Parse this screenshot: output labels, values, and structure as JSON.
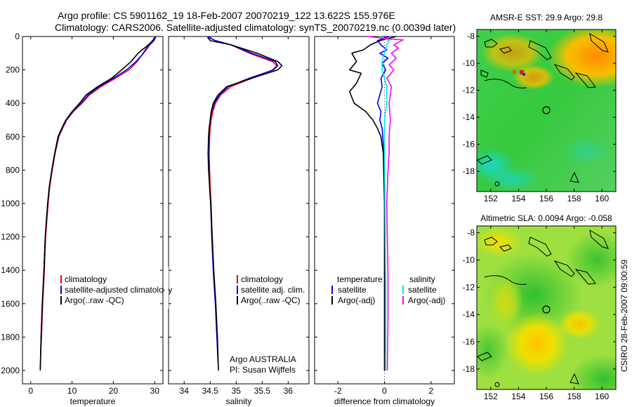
{
  "figure": {
    "title_line1": "Argo profile: CS 5901162_19 18-Feb-2007 20070219_122 13.622S 155.976E",
    "title_line2": "Climatology: CARS2006. Satellite-adjusted climatology: synTS_20070219.nc (0.0039d later)",
    "credit_vertical": "CSIRO 28-Feb-2007 09:00:59",
    "argo_note_1": "Argo AUSTRALIA",
    "argo_note_2": "PI: Susan Wijffels"
  },
  "colors": {
    "climatology": "#ff0000",
    "satellite": "#0000ff",
    "argo": "#000000",
    "satellite_salinity": "#00e5e5",
    "argo_salinity_adj": "#ff00ff"
  },
  "legends": {
    "temperature": [
      "climatology",
      "satellite-adjusted climatology",
      "Argo(..raw -QC)"
    ],
    "salinity": [
      "climatology",
      "satellite adj. clim.",
      "Argo(..raw -QC)"
    ],
    "difference": {
      "temperature_header": "temperature",
      "salinity_header": "salinity",
      "temperature_items": [
        "satellite",
        "Argo(-adj)"
      ],
      "salinity_items": [
        "satellite",
        "Argo(-adj)"
      ]
    }
  },
  "chart_data": [
    {
      "type": "line",
      "name": "temperature-profile",
      "xlabel": "temperature",
      "ylabel": "",
      "xlim": [
        -2,
        32
      ],
      "ylim": [
        2080,
        0
      ],
      "xticks": [
        0,
        10,
        20,
        30
      ],
      "yticks": [
        0,
        200,
        400,
        600,
        800,
        1000,
        1200,
        1400,
        1600,
        1800,
        2000
      ],
      "series": [
        {
          "name": "climatology",
          "color": "#ff0000",
          "points": [
            [
              30,
              0
            ],
            [
              29.6,
              25
            ],
            [
              28.5,
              50
            ],
            [
              27.2,
              100
            ],
            [
              25.8,
              150
            ],
            [
              23.8,
              200
            ],
            [
              20.5,
              250
            ],
            [
              17,
              300
            ],
            [
              14.2,
              350
            ],
            [
              12.4,
              400
            ],
            [
              10.3,
              450
            ],
            [
              8.7,
              500
            ],
            [
              7.7,
              550
            ],
            [
              6.8,
              600
            ],
            [
              5.9,
              700
            ],
            [
              5.2,
              800
            ],
            [
              4.6,
              900
            ],
            [
              4.2,
              1000
            ],
            [
              3.9,
              1100
            ],
            [
              3.6,
              1200
            ],
            [
              3.3,
              1400
            ],
            [
              2.9,
              1600
            ],
            [
              2.6,
              1800
            ],
            [
              2.4,
              1900
            ]
          ]
        },
        {
          "name": "satellite-adjusted climatology",
          "color": "#0000ff",
          "points": [
            [
              30.3,
              0
            ],
            [
              29.8,
              25
            ],
            [
              28.8,
              50
            ],
            [
              27.3,
              100
            ],
            [
              25.5,
              150
            ],
            [
              23.2,
              200
            ],
            [
              20,
              250
            ],
            [
              16.6,
              300
            ],
            [
              13.9,
              350
            ],
            [
              12.2,
              400
            ],
            [
              10.1,
              450
            ],
            [
              8.6,
              500
            ],
            [
              7.6,
              550
            ],
            [
              6.7,
              600
            ],
            [
              5.8,
              700
            ],
            [
              5.1,
              800
            ],
            [
              4.5,
              900
            ],
            [
              4.1,
              1000
            ],
            [
              3.8,
              1100
            ],
            [
              3.5,
              1200
            ],
            [
              3.2,
              1400
            ],
            [
              2.8,
              1600
            ],
            [
              2.5,
              1800
            ],
            [
              2.3,
              2000
            ]
          ]
        },
        {
          "name": "Argo(..raw -QC)",
          "color": "#000000",
          "points": [
            [
              30.2,
              5
            ],
            [
              29.5,
              25
            ],
            [
              28.5,
              50
            ],
            [
              26,
              100
            ],
            [
              24.3,
              150
            ],
            [
              22,
              200
            ],
            [
              19.6,
              250
            ],
            [
              16.2,
              300
            ],
            [
              13.4,
              350
            ],
            [
              11.8,
              400
            ],
            [
              10,
              450
            ],
            [
              8.5,
              500
            ],
            [
              7.5,
              550
            ],
            [
              6.6,
              600
            ],
            [
              5.8,
              700
            ],
            [
              5.1,
              800
            ],
            [
              4.5,
              900
            ],
            [
              4.1,
              1000
            ],
            [
              3.8,
              1100
            ],
            [
              3.5,
              1200
            ],
            [
              3.2,
              1400
            ],
            [
              2.8,
              1600
            ],
            [
              2.5,
              1800
            ],
            [
              2.3,
              2000
            ]
          ]
        }
      ]
    },
    {
      "type": "line",
      "name": "salinity-profile",
      "xlabel": "salinity",
      "ylabel": "",
      "xlim": [
        33.7,
        36.4
      ],
      "ylim": [
        2080,
        0
      ],
      "xticks": [
        34,
        34.5,
        35,
        35.5,
        36
      ],
      "yticks": [
        0,
        200,
        400,
        600,
        800,
        1000,
        1200,
        1400,
        1600,
        1800,
        2000
      ],
      "series": [
        {
          "name": "climatology",
          "color": "#ff0000",
          "points": [
            [
              34.45,
              0
            ],
            [
              34.6,
              25
            ],
            [
              34.9,
              50
            ],
            [
              35.25,
              100
            ],
            [
              35.7,
              150
            ],
            [
              35.78,
              175
            ],
            [
              35.7,
              200
            ],
            [
              35.3,
              250
            ],
            [
              34.9,
              300
            ],
            [
              34.7,
              350
            ],
            [
              34.6,
              400
            ],
            [
              34.55,
              450
            ],
            [
              34.52,
              500
            ],
            [
              34.5,
              550
            ],
            [
              34.49,
              600
            ],
            [
              34.48,
              700
            ],
            [
              34.49,
              800
            ],
            [
              34.5,
              900
            ],
            [
              34.52,
              1000
            ],
            [
              34.54,
              1200
            ],
            [
              34.56,
              1400
            ],
            [
              34.6,
              1600
            ],
            [
              34.63,
              1800
            ],
            [
              34.65,
              1900
            ]
          ]
        },
        {
          "name": "satellite adj. clim.",
          "color": "#0000ff",
          "points": [
            [
              34.45,
              0
            ],
            [
              34.6,
              25
            ],
            [
              34.9,
              50
            ],
            [
              35.3,
              100
            ],
            [
              35.75,
              150
            ],
            [
              35.8,
              175
            ],
            [
              35.72,
              200
            ],
            [
              35.25,
              250
            ],
            [
              34.85,
              300
            ],
            [
              34.68,
              350
            ],
            [
              34.58,
              400
            ],
            [
              34.53,
              450
            ],
            [
              34.5,
              500
            ],
            [
              34.49,
              550
            ],
            [
              34.48,
              600
            ],
            [
              34.47,
              700
            ],
            [
              34.48,
              800
            ],
            [
              34.49,
              900
            ],
            [
              34.51,
              1000
            ],
            [
              34.53,
              1200
            ],
            [
              34.56,
              1400
            ],
            [
              34.6,
              1600
            ],
            [
              34.63,
              1800
            ],
            [
              34.65,
              1950
            ]
          ]
        },
        {
          "name": "Argo(..raw -QC)",
          "color": "#000000",
          "points": [
            [
              34.45,
              5
            ],
            [
              34.5,
              25
            ],
            [
              34.9,
              50
            ],
            [
              35.4,
              100
            ],
            [
              35.8,
              150
            ],
            [
              35.88,
              175
            ],
            [
              35.8,
              200
            ],
            [
              35.3,
              250
            ],
            [
              34.82,
              300
            ],
            [
              34.65,
              350
            ],
            [
              34.56,
              400
            ],
            [
              34.52,
              450
            ],
            [
              34.5,
              500
            ],
            [
              34.48,
              550
            ],
            [
              34.47,
              600
            ],
            [
              34.46,
              700
            ],
            [
              34.47,
              800
            ],
            [
              34.49,
              900
            ],
            [
              34.51,
              1000
            ],
            [
              34.54,
              1200
            ],
            [
              34.57,
              1400
            ],
            [
              34.61,
              1600
            ],
            [
              34.64,
              1800
            ],
            [
              34.66,
              2000
            ]
          ]
        }
      ]
    },
    {
      "type": "line",
      "name": "difference-from-climatology",
      "xlabel": "difference from climatology",
      "ylabel": "",
      "xlim": [
        -3,
        3
      ],
      "ylim": [
        2080,
        0
      ],
      "xticks": [
        -2,
        0,
        2
      ],
      "yticks": [
        0,
        200,
        400,
        600,
        800,
        1000,
        1200,
        1400,
        1600,
        1800,
        2000
      ],
      "series": [
        {
          "name": "temperature satellite",
          "color": "#0000ff",
          "points": [
            [
              0.2,
              0
            ],
            [
              -0.3,
              25
            ],
            [
              -0.15,
              50
            ],
            [
              0.1,
              80
            ],
            [
              -0.2,
              100
            ],
            [
              0.15,
              130
            ],
            [
              -0.1,
              160
            ],
            [
              0.05,
              200
            ],
            [
              -0.15,
              250
            ],
            [
              -0.1,
              300
            ],
            [
              -0.2,
              350
            ],
            [
              -0.3,
              400
            ],
            [
              -0.15,
              450
            ],
            [
              -0.2,
              500
            ],
            [
              -0.1,
              550
            ],
            [
              -0.05,
              650
            ],
            [
              0,
              800
            ],
            [
              0.02,
              1000
            ],
            [
              0.03,
              1400
            ],
            [
              0.03,
              1900
            ]
          ]
        },
        {
          "name": "temperature Argo(-adj)",
          "color": "#000000",
          "points": [
            [
              0.5,
              0
            ],
            [
              -0.2,
              25
            ],
            [
              -0.6,
              50
            ],
            [
              -0.9,
              80
            ],
            [
              -1.4,
              100
            ],
            [
              -1.2,
              150
            ],
            [
              -1.5,
              200
            ],
            [
              -1.0,
              220
            ],
            [
              -1.2,
              280
            ],
            [
              -1.5,
              330
            ],
            [
              -1.3,
              400
            ],
            [
              -0.8,
              450
            ],
            [
              -0.5,
              500
            ],
            [
              -0.3,
              550
            ],
            [
              -0.15,
              600
            ],
            [
              -0.05,
              700
            ],
            [
              0,
              1000
            ],
            [
              0,
              1400
            ],
            [
              0,
              2000
            ]
          ]
        },
        {
          "name": "salinity satellite",
          "color": "#00e5e5",
          "points": [
            [
              -0.2,
              0
            ],
            [
              0.2,
              25
            ],
            [
              0.1,
              50
            ],
            [
              0,
              100
            ],
            [
              -0.1,
              150
            ],
            [
              -0.1,
              200
            ],
            [
              0,
              250
            ],
            [
              0.1,
              300
            ],
            [
              0.1,
              400
            ],
            [
              0,
              500
            ],
            [
              0,
              700
            ],
            [
              0.02,
              1000
            ],
            [
              0.05,
              1500
            ],
            [
              0.05,
              2000
            ]
          ]
        },
        {
          "name": "salinity Argo(-adj)",
          "color": "#ff00ff",
          "points": [
            [
              -0.7,
              0
            ],
            [
              0.2,
              15
            ],
            [
              0.8,
              20
            ],
            [
              0.4,
              50
            ],
            [
              0.6,
              70
            ],
            [
              0.3,
              100
            ],
            [
              0.5,
              130
            ],
            [
              0.2,
              170
            ],
            [
              0.4,
              200
            ],
            [
              0.1,
              250
            ],
            [
              0.3,
              300
            ],
            [
              0.2,
              400
            ],
            [
              0.25,
              500
            ],
            [
              0.2,
              600
            ],
            [
              0.2,
              700
            ],
            [
              0.15,
              800
            ],
            [
              0.1,
              1000
            ],
            [
              0.12,
              1200
            ],
            [
              0.15,
              1400
            ],
            [
              0.15,
              1700
            ],
            [
              0.12,
              2000
            ]
          ]
        }
      ]
    },
    {
      "type": "heatmap",
      "name": "amsr-e-sst-map",
      "title": "AMSR-E SST: 29.9 Argo: 29.8",
      "xlim": [
        151,
        161
      ],
      "ylim": [
        -19.5,
        -7.5
      ],
      "xticks": [
        152,
        154,
        156,
        158,
        160
      ],
      "yticks": [
        -8,
        -10,
        -12,
        -14,
        -16,
        -18
      ],
      "argo_position": [
        155.976,
        -13.622
      ]
    },
    {
      "type": "heatmap",
      "name": "altimetric-sla-map",
      "title": "Altimetric SLA: 0.0094 Argo: -0.058",
      "xlim": [
        151,
        161
      ],
      "ylim": [
        -19.5,
        -7.5
      ],
      "xticks": [
        152,
        154,
        156,
        158,
        160
      ],
      "yticks": [
        -8,
        -10,
        -12,
        -14,
        -16,
        -18
      ],
      "argo_position": [
        155.976,
        -13.622
      ]
    }
  ]
}
